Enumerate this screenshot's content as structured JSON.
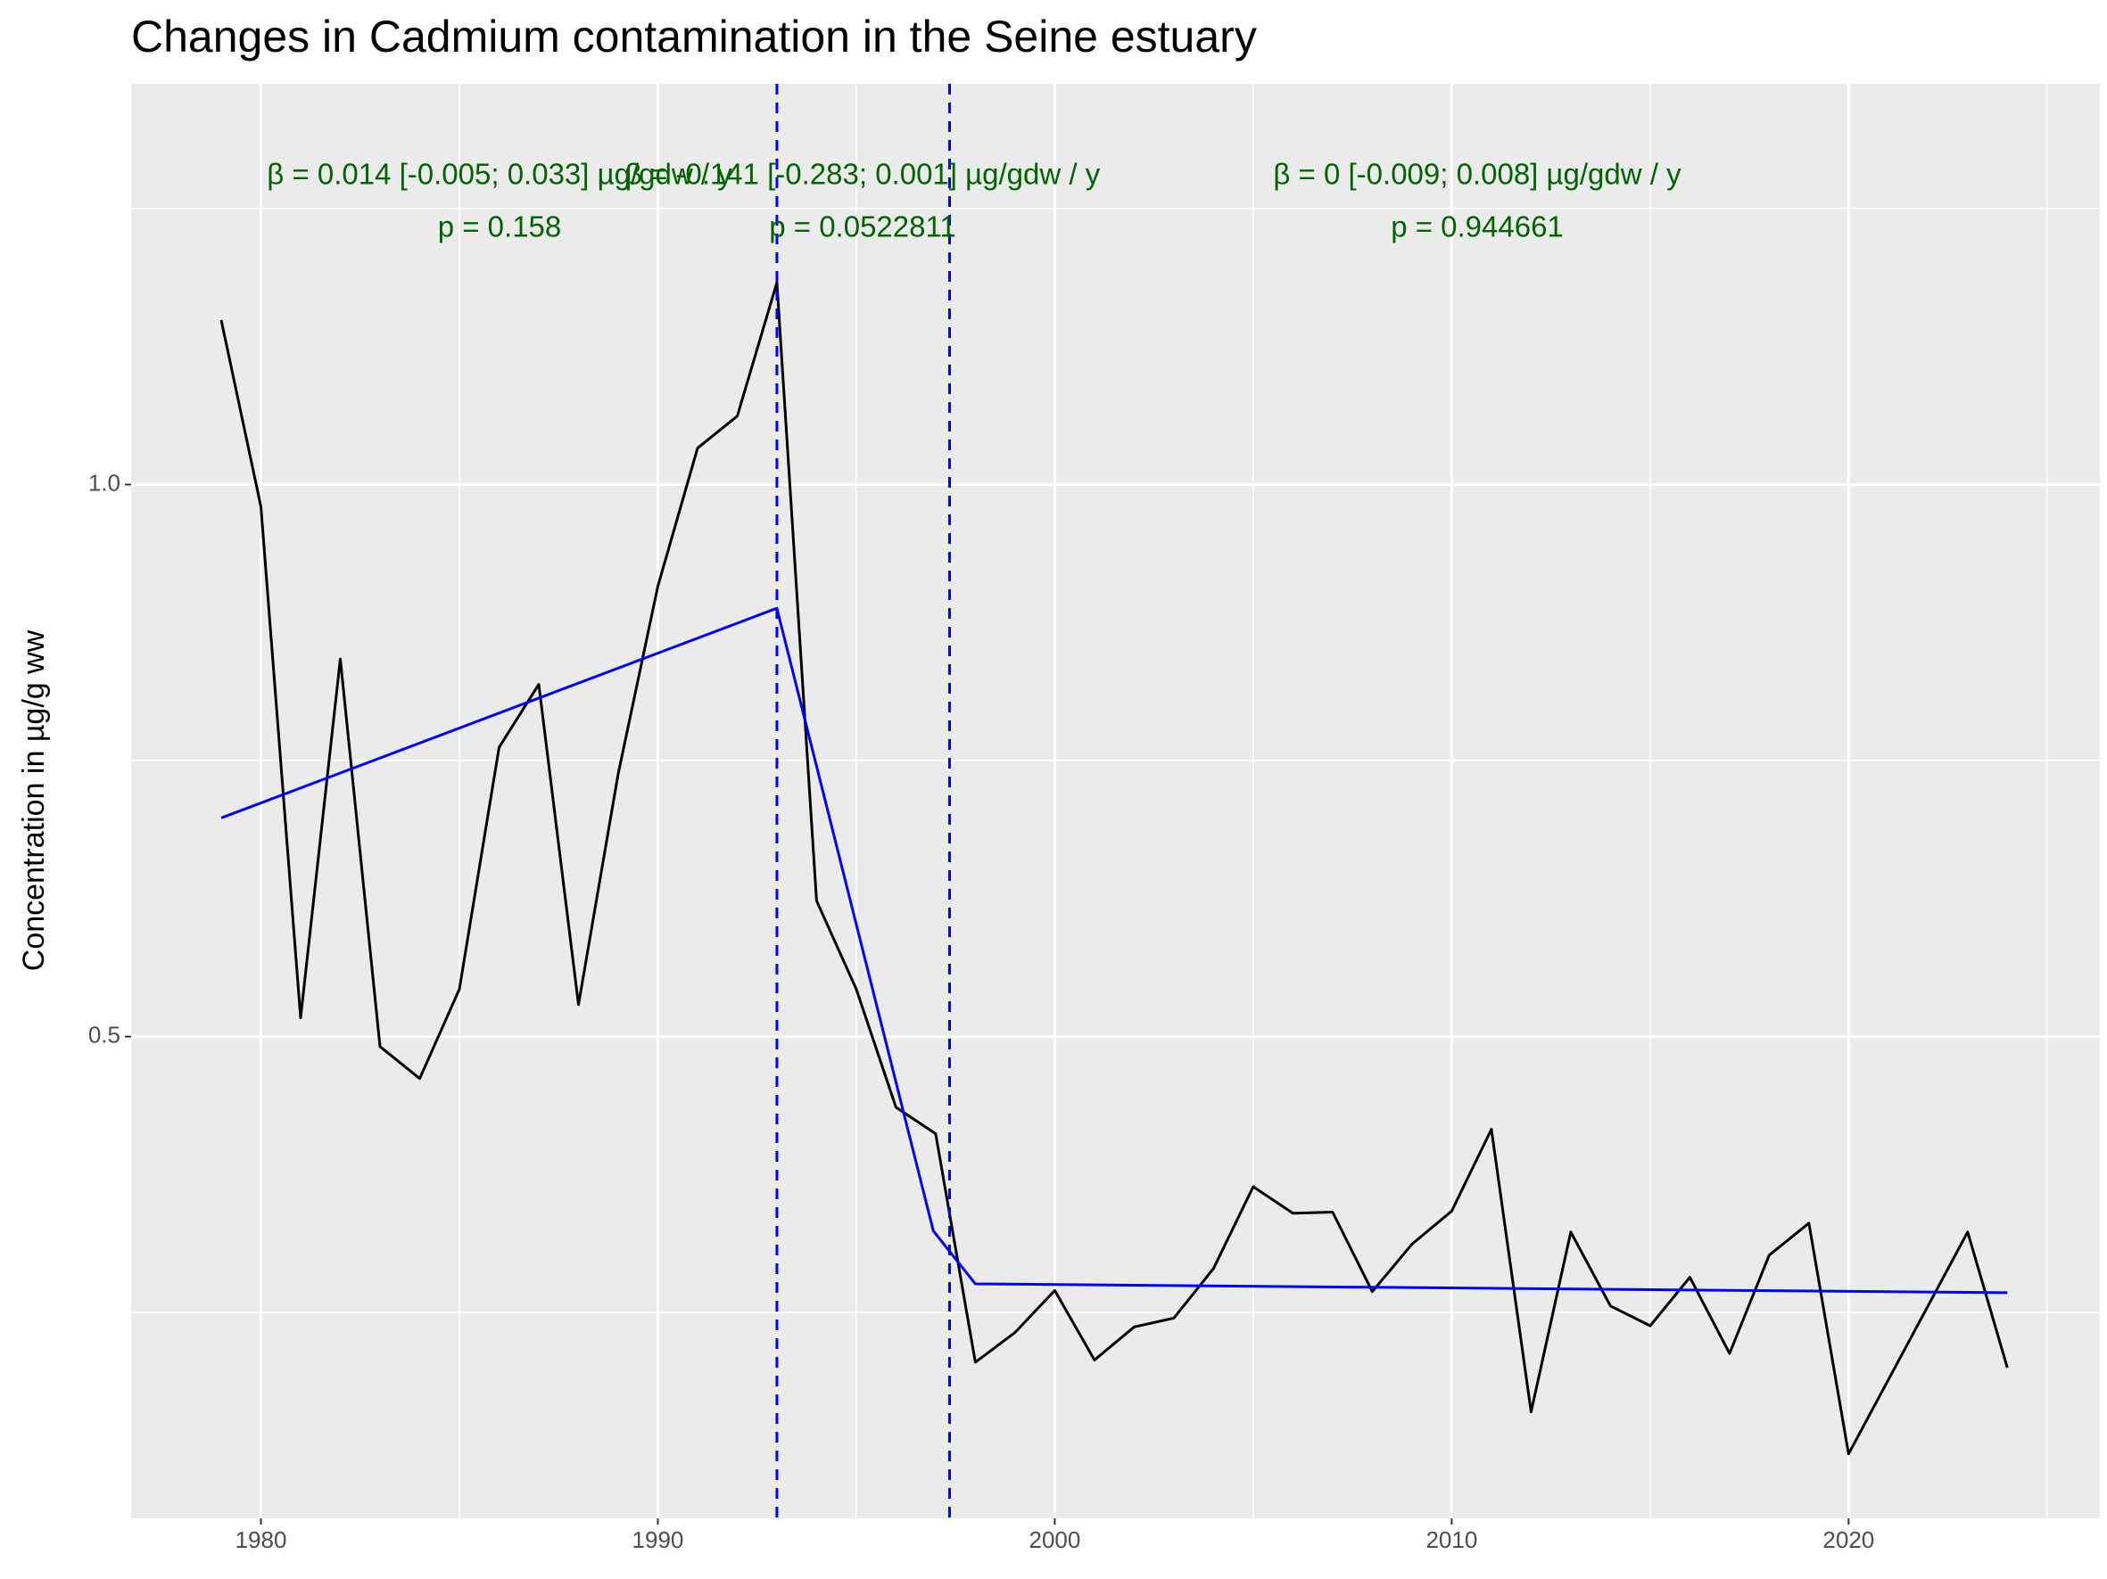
{
  "chart_data": {
    "type": "line",
    "title": "Changes in Cadmium contamination in the Seine estuary",
    "y_label": "Concentration in µg/g ww",
    "xlim": [
      1976.73,
      2026.33
    ],
    "ylim": [
      0.0636,
      1.363
    ],
    "xticks": [
      1980,
      1990,
      2000,
      2010,
      2020
    ],
    "yticks": [
      0.5,
      {
        "value": 1,
        "label": "1.0"
      }
    ],
    "minor_xticks": [
      1985,
      1995,
      2005,
      2015,
      2025
    ],
    "minor_yticks": [
      0.25,
      0.75,
      1.25
    ],
    "grid": true,
    "series": [
      {
        "color": "#000000",
        "x": [
          1979,
          1980,
          1981,
          1982,
          1983,
          1984,
          1985,
          1986,
          1987,
          1988,
          1989,
          1990,
          1991,
          1992,
          1993,
          1994,
          1995,
          1996,
          1997,
          1998,
          1999,
          2000,
          2001,
          2002,
          2003,
          2004,
          2005,
          2006,
          2007,
          2008,
          2009,
          2010,
          2011,
          2012,
          2013,
          2014,
          2015,
          2016,
          2017,
          2018,
          2019,
          2020,
          2023,
          2024
        ],
        "values": [
          1.149,
          0.98,
          0.517,
          0.842,
          0.491,
          0.462,
          0.543,
          0.762,
          0.819,
          0.529,
          0.738,
          0.908,
          1.033,
          1.062,
          1.183,
          0.623,
          0.543,
          0.436,
          0.412,
          0.205,
          0.232,
          0.27,
          0.207,
          0.237,
          0.245,
          0.29,
          0.364,
          0.34,
          0.341,
          0.269,
          0.312,
          0.342,
          0.416,
          0.16,
          0.323,
          0.256,
          0.238,
          0.282,
          0.213,
          0.302,
          0.331,
          0.122,
          0.323,
          0.2
        ]
      },
      {
        "color": "#0000ff",
        "x": [
          1979,
          1993,
          1996.94,
          1998,
          2024
        ],
        "values": [
          0.698,
          0.888,
          0.324,
          0.276,
          0.268
        ]
      }
    ],
    "vlines": {
      "color": "#0000ff",
      "x": [
        1993,
        1997.35
      ]
    },
    "annotations": {
      "color": "#006400",
      "items": [
        {
          "beta": "β = 0.014 [-0.005; 0.033] µg/gdw / y",
          "p": "p = 0.158"
        },
        {
          "beta": "β = -0.141 [-0.283; 0.001] µg/gdw / y",
          "p": "p = 0.0522811"
        },
        {
          "beta": "β = 0 [-0.009; 0.008] µg/gdw / y",
          "p": "p = 0.944661"
        }
      ]
    }
  }
}
